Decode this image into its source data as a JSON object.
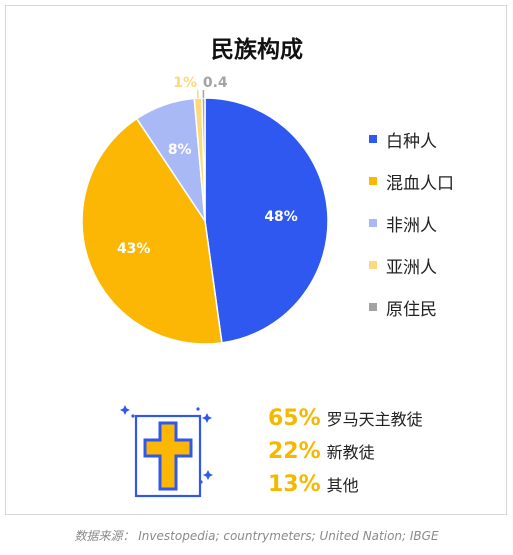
{
  "title": "民族构成",
  "chart_data": {
    "type": "pie",
    "title": "民族构成",
    "slices": [
      {
        "name": "白种人",
        "value": 48,
        "label": "48%",
        "color": "#2e58f0",
        "label_color": "#ffffff"
      },
      {
        "name": "混血人口",
        "value": 43,
        "label": "43%",
        "color": "#fcb705",
        "label_color": "#ffffff"
      },
      {
        "name": "非洲人",
        "value": 8,
        "label": "8%",
        "color": "#a9b9f6",
        "label_color": "#ffffff"
      },
      {
        "name": "亚洲人",
        "value": 1,
        "label": "1%",
        "color": "#fbd97c",
        "label_color": "#fbd97c"
      },
      {
        "name": "原住民",
        "value": 0.4,
        "label": "0.4",
        "color": "#a3a3a3",
        "label_color": "#a3a3a3"
      }
    ],
    "legend_position": "right"
  },
  "religion": [
    {
      "percent": "65%",
      "name": "罗马天主教徒"
    },
    {
      "percent": "22%",
      "name": "新教徒"
    },
    {
      "percent": "13%",
      "name": "其他"
    }
  ],
  "icons": {
    "religion": "cross-icon"
  },
  "source": "数据来源： Investopedia; countrymeters; United Nation; IBGE"
}
